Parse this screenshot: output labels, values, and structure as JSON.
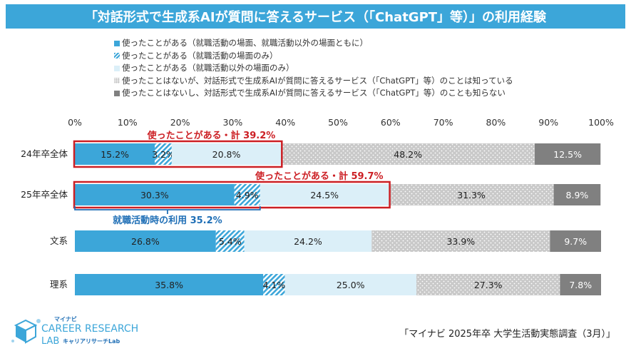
{
  "title": "「対話形式で生成系AIが質問に答えるサービス（「ChatGPT」等）」の利用経験",
  "legend": [
    {
      "label": "使ったことがある（就職活動の場面、就職活動以外の場面ともに）",
      "pattern": "solid-blue"
    },
    {
      "label": "使ったことがある（就職活動の場面のみ）",
      "pattern": "hatch-blue"
    },
    {
      "label": "使ったことがある（就職活動以外の場面のみ）",
      "pattern": "light-blue"
    },
    {
      "label": "使ったことはないが、対話形式で生成系AIが質問に答えるサービス（「ChatGPT」等）のことは知っている",
      "pattern": "dots-gray"
    },
    {
      "label": "使ったことはないし、対話形式で生成系AIが質問に答えるサービス（「ChatGPT」等）のことも知らない",
      "pattern": "solid-gray"
    }
  ],
  "colors": {
    "title_bg": "#3ca6d9",
    "solid_blue": "#3ca6d9",
    "hatch_blue": "#3ca6d9",
    "light_blue": "#dbeff8",
    "dots_gray": "#c9c9c9",
    "solid_gray": "#808080",
    "highlight_red": "#cc1f24",
    "bracket_blue": "#1f6fb6"
  },
  "chart_data": {
    "type": "stacked-bar-horizontal",
    "x_ticks": [
      "0%",
      "10%",
      "20%",
      "30%",
      "40%",
      "50%",
      "60%",
      "70%",
      "80%",
      "90%",
      "100%"
    ],
    "xlim": [
      0,
      100
    ],
    "categories": [
      "24年卒全体",
      "25年卒全体",
      "文系",
      "理系"
    ],
    "series": [
      {
        "name": "使ったことがある（就職活動の場面、就職活動以外の場面ともに）",
        "values": [
          15.2,
          30.3,
          26.8,
          35.8
        ],
        "labels": [
          "15.2%",
          "30.3%",
          "26.8%",
          "35.8%"
        ]
      },
      {
        "name": "使ったことがある（就職活動の場面のみ）",
        "values": [
          3.2,
          4.9,
          5.4,
          4.1
        ],
        "labels": [
          "3.2%",
          "4.9%",
          "5.4%",
          "4.1%"
        ]
      },
      {
        "name": "使ったことがある（就職活動以外の場面のみ）",
        "values": [
          20.8,
          24.5,
          24.2,
          25.0
        ],
        "labels": [
          "20.8%",
          "24.5%",
          "24.2%",
          "25.0%"
        ]
      },
      {
        "name": "使ったことはないが、知っている",
        "values": [
          48.2,
          31.3,
          33.9,
          27.3
        ],
        "labels": [
          "48.2%",
          "31.3%",
          "33.9%",
          "27.3%"
        ]
      },
      {
        "name": "使ったことはないし、知らない",
        "values": [
          12.5,
          8.9,
          9.7,
          7.8
        ],
        "labels": [
          "12.5%",
          "8.9%",
          "9.7%",
          "7.8%"
        ]
      }
    ],
    "annotations": [
      {
        "text": "使ったことがある・計  39.2%",
        "category": "24年卒全体",
        "from": 0,
        "to": 39.2,
        "style": "red-box"
      },
      {
        "text": "使ったことがある・計  59.7%",
        "category": "25年卒全体",
        "from": 0,
        "to": 59.7,
        "style": "red-box"
      },
      {
        "text": "就職活動時の利用  35.2%",
        "category": "25年卒全体",
        "from": 0,
        "to": 35.2,
        "style": "blue-bracket"
      }
    ]
  },
  "logo": {
    "top": "マイナビ",
    "main": "CAREER RESEARCH",
    "sub": "LAB",
    "sub2": "キャリアリサーチLab"
  },
  "source": "「マイナビ 2025年卒 大学生活動実態調査（3月）」"
}
